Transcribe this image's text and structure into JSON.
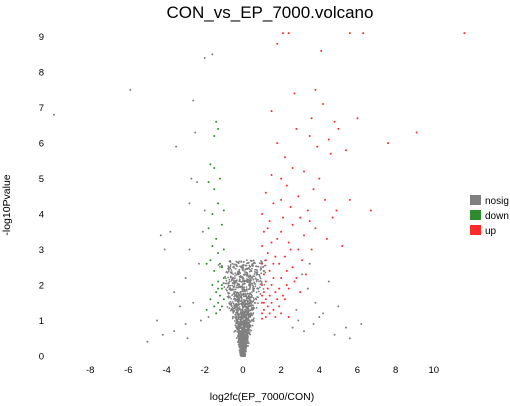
{
  "chart_data": {
    "type": "scatter",
    "title": "CON_vs_EP_7000.volcano",
    "xlabel": "log2fc(EP_7000/CON)",
    "ylabel": "-log10Pvalue",
    "xlim": [
      -10,
      12
    ],
    "ylim": [
      0,
      9.3
    ],
    "xticks": [
      "-8",
      "-6",
      "-4",
      "-2",
      "0",
      "2",
      "4",
      "6",
      "8",
      "10"
    ],
    "yticks": [
      "0",
      "1",
      "2",
      "3",
      "4",
      "5",
      "6",
      "7",
      "8",
      "9"
    ],
    "grid": false,
    "legend_position": "right",
    "colors": {
      "nosig": "#808080",
      "down": "#2e8b2e",
      "up": "#ff2a2a"
    },
    "series": [
      {
        "name": "nosig",
        "color": "#808080",
        "points": [
          [
            -2.3,
            2.6
          ],
          [
            -2.1,
            3.5
          ],
          [
            -3.0,
            2.2
          ],
          [
            -3.6,
            1.8
          ],
          [
            -2.6,
            1.5
          ],
          [
            -2.0,
            4.1
          ],
          [
            -1.8,
            1.1
          ],
          [
            -2.2,
            1.0
          ],
          [
            -3.3,
            1.4
          ],
          [
            -2.8,
            3.0
          ],
          [
            -2.5,
            6.3
          ],
          [
            -2.7,
            5.0
          ],
          [
            -4.1,
            3.0
          ],
          [
            -3.8,
            3.5
          ],
          [
            -1.6,
            8.5
          ],
          [
            -2.0,
            8.4
          ],
          [
            -2.6,
            7.2
          ],
          [
            -5.9,
            7.5
          ],
          [
            -9.9,
            6.8
          ],
          [
            -3.5,
            5.9
          ],
          [
            -4.3,
            3.4
          ],
          [
            -2.4,
            4.9
          ],
          [
            -2.8,
            4.3
          ],
          [
            3.4,
            1.9
          ],
          [
            3.8,
            1.5
          ],
          [
            3.1,
            2.3
          ],
          [
            4.2,
            1.2
          ],
          [
            4.5,
            2.1
          ],
          [
            2.9,
            1.0
          ],
          [
            3.5,
            2.6
          ],
          [
            2.8,
            1.3
          ],
          [
            4.0,
            1.1
          ],
          [
            5.4,
            0.8
          ],
          [
            5.0,
            1.4
          ],
          [
            6.2,
            0.9
          ],
          [
            3.2,
            0.7
          ],
          [
            2.6,
            0.8
          ],
          [
            4.8,
            0.6
          ],
          [
            -3.0,
            0.9
          ],
          [
            -3.6,
            0.7
          ],
          [
            -4.2,
            0.6
          ],
          [
            -2.9,
            0.5
          ],
          [
            -5.0,
            0.4
          ],
          [
            5.6,
            0.5
          ],
          [
            -4.5,
            1.0
          ],
          [
            3.7,
            0.9
          ]
        ]
      },
      {
        "name": "down",
        "color": "#2e8b2e",
        "points": [
          [
            -1.4,
            6.6
          ],
          [
            -1.3,
            6.4
          ],
          [
            -1.5,
            6.2
          ],
          [
            -1.7,
            5.4
          ],
          [
            -1.2,
            5.0
          ],
          [
            -1.5,
            4.7
          ],
          [
            -1.3,
            4.3
          ],
          [
            -1.6,
            4.0
          ],
          [
            -1.1,
            3.7
          ],
          [
            -1.8,
            3.6
          ],
          [
            -1.4,
            3.3
          ],
          [
            -1.0,
            3.0
          ],
          [
            -1.3,
            2.9
          ],
          [
            -1.7,
            2.7
          ],
          [
            -1.1,
            2.5
          ],
          [
            -1.5,
            2.4
          ],
          [
            -1.0,
            2.2
          ],
          [
            -1.3,
            2.1
          ],
          [
            -1.6,
            2.0
          ],
          [
            -1.1,
            1.9
          ],
          [
            -1.4,
            1.8
          ],
          [
            -1.2,
            1.7
          ],
          [
            -1.7,
            1.6
          ],
          [
            -1.0,
            1.6
          ],
          [
            -1.3,
            1.5
          ],
          [
            -1.5,
            1.4
          ],
          [
            -1.1,
            1.4
          ],
          [
            -1.9,
            1.3
          ],
          [
            -1.2,
            1.3
          ],
          [
            -1.4,
            1.2
          ],
          [
            -1.0,
            4.1
          ],
          [
            -1.6,
            3.1
          ],
          [
            -1.9,
            2.6
          ],
          [
            -1.2,
            2.6
          ],
          [
            -1.5,
            5.3
          ],
          [
            -1.8,
            4.9
          ],
          [
            -1.1,
            2.0
          ],
          [
            -1.3,
            1.9
          ]
        ]
      },
      {
        "name": "up",
        "color": "#ff2a2a",
        "points": [
          [
            2.1,
            9.1
          ],
          [
            2.4,
            9.1
          ],
          [
            5.6,
            9.1
          ],
          [
            6.3,
            9.1
          ],
          [
            11.6,
            9.1
          ],
          [
            1.8,
            8.8
          ],
          [
            4.1,
            8.6
          ],
          [
            3.8,
            7.5
          ],
          [
            2.7,
            7.4
          ],
          [
            4.2,
            7.1
          ],
          [
            1.5,
            6.9
          ],
          [
            3.6,
            6.7
          ],
          [
            4.8,
            6.6
          ],
          [
            6.0,
            6.7
          ],
          [
            2.8,
            6.4
          ],
          [
            5.0,
            6.4
          ],
          [
            3.5,
            6.2
          ],
          [
            4.5,
            6.1
          ],
          [
            9.1,
            6.3
          ],
          [
            7.6,
            6.0
          ],
          [
            1.8,
            6.0
          ],
          [
            3.9,
            5.9
          ],
          [
            5.4,
            5.8
          ],
          [
            2.2,
            5.6
          ],
          [
            4.6,
            5.7
          ],
          [
            2.6,
            5.3
          ],
          [
            3.2,
            5.2
          ],
          [
            1.5,
            5.1
          ],
          [
            2.0,
            5.0
          ],
          [
            4.0,
            5.0
          ],
          [
            2.3,
            4.8
          ],
          [
            3.7,
            4.7
          ],
          [
            1.2,
            4.6
          ],
          [
            2.9,
            4.5
          ],
          [
            4.3,
            4.4
          ],
          [
            5.6,
            4.4
          ],
          [
            1.6,
            4.3
          ],
          [
            2.5,
            4.2
          ],
          [
            3.4,
            4.1
          ],
          [
            1.0,
            4.0
          ],
          [
            2.1,
            3.9
          ],
          [
            3.0,
            3.9
          ],
          [
            4.7,
            3.9
          ],
          [
            1.4,
            3.8
          ],
          [
            2.6,
            3.7
          ],
          [
            3.8,
            3.6
          ],
          [
            1.1,
            3.5
          ],
          [
            2.0,
            3.5
          ],
          [
            3.2,
            3.4
          ],
          [
            4.4,
            3.3
          ],
          [
            1.5,
            3.2
          ],
          [
            2.4,
            3.2
          ],
          [
            1.0,
            3.1
          ],
          [
            2.9,
            3.0
          ],
          [
            3.6,
            3.0
          ],
          [
            1.3,
            2.9
          ],
          [
            2.2,
            2.8
          ],
          [
            1.7,
            2.8
          ],
          [
            3.1,
            2.7
          ],
          [
            1.0,
            2.6
          ],
          [
            1.9,
            2.6
          ],
          [
            2.6,
            2.5
          ],
          [
            1.4,
            2.4
          ],
          [
            2.3,
            2.4
          ],
          [
            1.1,
            2.3
          ],
          [
            3.3,
            2.3
          ],
          [
            1.6,
            2.2
          ],
          [
            2.0,
            2.2
          ],
          [
            1.2,
            2.1
          ],
          [
            2.7,
            2.1
          ],
          [
            1.0,
            2.0
          ],
          [
            1.5,
            2.0
          ],
          [
            1.9,
            1.9
          ],
          [
            1.3,
            1.9
          ],
          [
            2.4,
            1.9
          ],
          [
            1.1,
            1.8
          ],
          [
            1.7,
            1.8
          ],
          [
            2.1,
            1.7
          ],
          [
            1.0,
            1.7
          ],
          [
            1.4,
            1.7
          ],
          [
            1.2,
            1.6
          ],
          [
            1.8,
            1.6
          ],
          [
            2.2,
            1.6
          ],
          [
            1.0,
            1.5
          ],
          [
            1.5,
            1.5
          ],
          [
            1.3,
            1.4
          ],
          [
            1.9,
            1.4
          ],
          [
            1.1,
            1.3
          ],
          [
            1.6,
            1.3
          ],
          [
            1.0,
            1.2
          ],
          [
            1.4,
            1.2
          ],
          [
            2.0,
            1.2
          ],
          [
            1.2,
            1.1
          ],
          [
            1.7,
            1.1
          ],
          [
            1.0,
            1.05
          ],
          [
            2.4,
            1.1
          ],
          [
            3.0,
            1.8
          ],
          [
            2.8,
            2.2
          ],
          [
            3.5,
            3.8
          ],
          [
            4.9,
            4.1
          ],
          [
            2.5,
            3.0
          ],
          [
            1.8,
            3.3
          ],
          [
            1.3,
            3.6
          ],
          [
            2.0,
            4.4
          ],
          [
            6.7,
            4.1
          ],
          [
            5.2,
            3.1
          ],
          [
            1.1,
            1.5
          ],
          [
            1.6,
            2.6
          ],
          [
            2.3,
            2.0
          ],
          [
            1.2,
            2.7
          ]
        ]
      }
    ]
  }
}
